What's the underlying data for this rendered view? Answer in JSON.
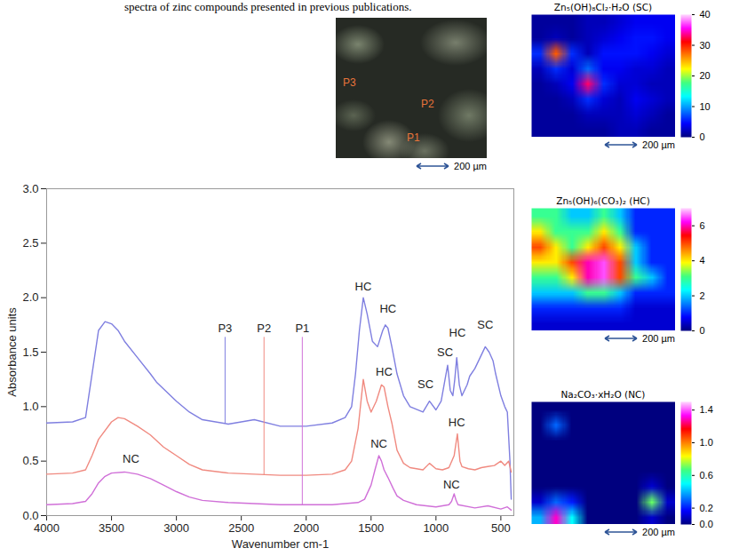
{
  "caption": "spectra of zinc compounds presented in previous publications.",
  "micrograph": {
    "labels": [
      "P3",
      "P2",
      "P1"
    ],
    "scale_bar": "200 µm"
  },
  "chart_data": [
    {
      "type": "line",
      "x_label": "Wavenumber cm-1",
      "y_label": "Absorbance units",
      "xlim": [
        4000,
        400
      ],
      "xticks": [
        4000,
        3500,
        3000,
        2500,
        2000,
        1500,
        1000,
        500
      ],
      "ylim": [
        0,
        3
      ],
      "yticks": [
        {
          "value": 0,
          "label": "0.0"
        },
        {
          "value": 0.5,
          "label": "0.5"
        },
        {
          "value": 1,
          "label": "1.0"
        },
        {
          "value": 1.5,
          "label": "1.5"
        },
        {
          "value": 2,
          "label": "2.0"
        },
        {
          "value": 2.5,
          "label": "2.5"
        },
        {
          "value": 3,
          "label": "3.0"
        }
      ],
      "grid": false,
      "series": [
        {
          "name": "P3",
          "color": "#7f7fe0",
          "x": [
            4000,
            3800,
            3700,
            3650,
            3600,
            3550,
            3500,
            3450,
            3400,
            3300,
            3200,
            3150,
            3000,
            2900,
            2800,
            2600,
            2400,
            2200,
            2000,
            1800,
            1700,
            1650,
            1620,
            1590,
            1560,
            1530,
            1490,
            1450,
            1410,
            1390,
            1370,
            1340,
            1300,
            1250,
            1200,
            1100,
            1050,
            1000,
            960,
            930,
            910,
            890,
            870,
            855,
            840,
            820,
            800,
            760,
            740,
            700,
            660,
            620,
            590,
            560,
            540,
            500,
            470,
            450,
            430,
            420
          ],
          "values": [
            0.85,
            0.86,
            0.9,
            1.3,
            1.7,
            1.78,
            1.76,
            1.7,
            1.6,
            1.45,
            1.3,
            1.22,
            1.05,
            0.95,
            0.88,
            0.84,
            0.88,
            0.82,
            0.82,
            0.85,
            0.9,
            1.0,
            1.3,
            1.7,
            2.0,
            1.85,
            1.6,
            1.55,
            1.7,
            1.75,
            1.72,
            1.55,
            1.3,
            1.1,
            1.0,
            0.95,
            1.05,
            0.97,
            1.05,
            1.25,
            1.38,
            1.15,
            1.1,
            1.25,
            1.45,
            1.2,
            1.1,
            1.2,
            1.28,
            1.35,
            1.45,
            1.55,
            1.5,
            1.42,
            1.3,
            1.1,
            1.0,
            0.95,
            0.5,
            0.15
          ]
        },
        {
          "name": "P2",
          "color": "#f08a80",
          "x": [
            4000,
            3800,
            3700,
            3650,
            3600,
            3500,
            3450,
            3400,
            3300,
            3200,
            3100,
            3000,
            2900,
            2800,
            2600,
            2400,
            2200,
            2000,
            1800,
            1700,
            1650,
            1600,
            1560,
            1530,
            1500,
            1460,
            1420,
            1400,
            1370,
            1340,
            1300,
            1250,
            1200,
            1100,
            1050,
            1000,
            950,
            900,
            860,
            835,
            815,
            800,
            750,
            700,
            650,
            600,
            550,
            500,
            470,
            440,
            420
          ],
          "values": [
            0.38,
            0.39,
            0.42,
            0.55,
            0.7,
            0.86,
            0.9,
            0.89,
            0.82,
            0.74,
            0.63,
            0.55,
            0.47,
            0.42,
            0.39,
            0.38,
            0.37,
            0.37,
            0.38,
            0.42,
            0.5,
            0.8,
            1.25,
            1.05,
            0.95,
            1.05,
            1.2,
            1.18,
            1.0,
            0.85,
            0.6,
            0.48,
            0.44,
            0.42,
            0.48,
            0.43,
            0.42,
            0.44,
            0.55,
            0.75,
            0.5,
            0.45,
            0.43,
            0.42,
            0.44,
            0.45,
            0.46,
            0.5,
            0.46,
            0.5,
            0.4
          ]
        },
        {
          "name": "P1",
          "color": "#d070d8",
          "x": [
            4000,
            3800,
            3700,
            3650,
            3600,
            3550,
            3500,
            3400,
            3300,
            3200,
            3100,
            3000,
            2900,
            2800,
            2600,
            2400,
            2200,
            2000,
            1800,
            1600,
            1550,
            1500,
            1470,
            1440,
            1420,
            1400,
            1370,
            1330,
            1300,
            1250,
            1150,
            1000,
            900,
            880,
            860,
            845,
            830,
            700,
            600,
            500,
            450,
            420
          ],
          "values": [
            0.1,
            0.11,
            0.13,
            0.2,
            0.3,
            0.36,
            0.39,
            0.4,
            0.38,
            0.34,
            0.28,
            0.22,
            0.17,
            0.14,
            0.12,
            0.11,
            0.1,
            0.1,
            0.1,
            0.12,
            0.15,
            0.28,
            0.42,
            0.55,
            0.5,
            0.42,
            0.35,
            0.25,
            0.18,
            0.14,
            0.1,
            0.08,
            0.1,
            0.13,
            0.2,
            0.14,
            0.1,
            0.07,
            0.09,
            0.06,
            0.08,
            0.05
          ]
        }
      ],
      "annotations": [
        {
          "text": "P3",
          "x": 2625,
          "y": 1.72
        },
        {
          "text": "P2",
          "x": 2325,
          "y": 1.72
        },
        {
          "text": "P1",
          "x": 2030,
          "y": 1.72
        },
        {
          "text": "HC",
          "x": 1560,
          "y": 2.1
        },
        {
          "text": "HC",
          "x": 1370,
          "y": 1.9
        },
        {
          "text": "SC",
          "x": 1080,
          "y": 1.2
        },
        {
          "text": "SC",
          "x": 930,
          "y": 1.5
        },
        {
          "text": "HC",
          "x": 835,
          "y": 1.68
        },
        {
          "text": "SC",
          "x": 620,
          "y": 1.75
        },
        {
          "text": "HC",
          "x": 1400,
          "y": 1.32
        },
        {
          "text": "HC",
          "x": 840,
          "y": 0.85
        },
        {
          "text": "NC",
          "x": 3350,
          "y": 0.52
        },
        {
          "text": "NC",
          "x": 1440,
          "y": 0.66
        },
        {
          "text": "NC",
          "x": 880,
          "y": 0.28
        }
      ]
    },
    {
      "type": "heatmap",
      "title": "Zn₅(OH)₈Cl₂·H₂O (SC)",
      "scale_bar": "200 µm",
      "cells": [
        [
          1,
          1,
          1,
          2,
          2,
          3,
          4,
          4,
          4
        ],
        [
          1,
          2,
          1,
          2,
          3,
          4,
          5,
          5,
          4
        ],
        [
          6,
          28,
          6,
          2,
          5,
          5,
          5,
          4,
          3
        ],
        [
          2,
          6,
          3,
          8,
          4,
          4,
          3,
          3,
          2
        ],
        [
          1,
          2,
          4,
          33,
          6,
          3,
          3,
          2,
          2
        ],
        [
          1,
          1,
          2,
          6,
          3,
          2,
          4,
          3,
          2
        ],
        [
          1,
          1,
          1,
          2,
          2,
          2,
          3,
          2,
          1
        ],
        [
          1,
          1,
          1,
          1,
          1,
          2,
          2,
          1,
          1
        ]
      ],
      "color_range": [
        0,
        40
      ],
      "color_ticks": [
        0,
        10,
        20,
        30,
        40
      ]
    },
    {
      "type": "heatmap",
      "title": "Zn₅(OH)₆(CO₃)₂ (HC)",
      "scale_bar": "200 µm",
      "cells": [
        [
          3,
          3,
          2,
          2,
          3,
          2,
          1,
          1,
          1
        ],
        [
          4,
          3,
          3,
          3,
          4,
          3,
          1,
          1,
          1
        ],
        [
          5,
          4,
          3,
          4,
          5,
          4,
          2,
          1,
          1
        ],
        [
          4,
          4,
          5,
          6,
          6.5,
          5,
          2,
          1,
          1
        ],
        [
          3,
          3,
          4,
          6,
          6.5,
          5,
          3,
          2,
          1
        ],
        [
          2,
          2,
          2,
          3,
          3,
          2,
          1,
          1,
          1
        ],
        [
          1,
          1,
          1,
          1,
          1,
          1,
          0.5,
          0.5,
          0.5
        ],
        [
          0.5,
          0.5,
          0.5,
          0.5,
          0.5,
          0.5,
          0.5,
          0.5,
          0.5
        ]
      ],
      "color_range": [
        0,
        7
      ],
      "color_ticks": [
        0,
        2,
        4,
        6
      ]
    },
    {
      "type": "heatmap",
      "title": "Na₂CO₃·xH₂O (NC)",
      "scale_bar": "200 µm",
      "cells": [
        [
          0,
          0,
          0,
          0,
          0,
          0,
          0,
          0,
          0
        ],
        [
          0,
          0.3,
          0,
          0,
          0,
          0,
          0,
          0,
          0
        ],
        [
          0,
          0,
          0,
          0,
          0,
          0,
          0,
          0,
          0
        ],
        [
          0,
          0,
          0,
          0,
          0,
          0,
          0,
          0,
          0
        ],
        [
          0,
          0,
          0,
          0,
          0,
          0,
          0,
          0,
          0
        ],
        [
          0,
          0,
          0,
          0,
          0,
          0,
          0,
          0.1,
          0
        ],
        [
          0.1,
          0.3,
          0.2,
          0,
          0,
          0,
          0,
          0.7,
          0.1
        ],
        [
          0.4,
          1.3,
          0.5,
          0,
          0,
          0,
          0,
          0.1,
          0
        ]
      ],
      "color_range": [
        0,
        1.5
      ],
      "color_ticks": [
        {
          "value": 0,
          "label": "0.0"
        },
        {
          "value": 0.2,
          "label": "0.2"
        },
        {
          "value": 0.6,
          "label": "0.6"
        },
        {
          "value": 1,
          "label": "1.0"
        },
        {
          "value": 1.4,
          "label": "1.4"
        }
      ]
    }
  ]
}
